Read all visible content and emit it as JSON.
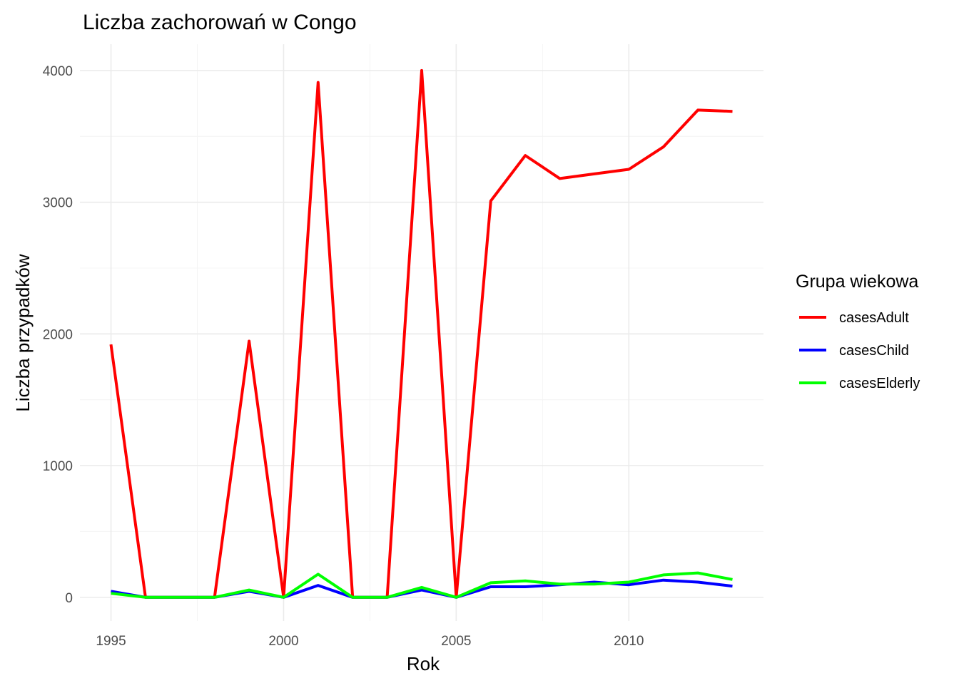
{
  "chart_data": {
    "type": "line",
    "title": "Liczba zachorowań w Congo",
    "xlabel": "Rok",
    "ylabel": "Liczba przypadków",
    "x": [
      1995,
      1996,
      1997,
      1998,
      1999,
      2000,
      2001,
      2002,
      2003,
      2004,
      2005,
      2006,
      2007,
      2008,
      2009,
      2010,
      2011,
      2012,
      2013
    ],
    "xlim": [
      1994.1,
      2013.9
    ],
    "ylim": [
      -180,
      4200
    ],
    "x_ticks": [
      "1995",
      "2000",
      "2005",
      "2010"
    ],
    "y_ticks": [
      "0",
      "1000",
      "2000",
      "3000",
      "4000"
    ],
    "grid": true,
    "legend": {
      "title": "Grupa wiekowa",
      "placement": "right"
    },
    "series": [
      {
        "name": "casesAdult",
        "color": "#ff0000",
        "values": [
          1920,
          0,
          0,
          0,
          1945,
          0,
          3910,
          0,
          0,
          4000,
          0,
          3010,
          3355,
          3180,
          3215,
          3250,
          3420,
          3700,
          3690
        ]
      },
      {
        "name": "casesChild",
        "color": "#0000ff",
        "values": [
          45,
          0,
          0,
          0,
          45,
          0,
          90,
          0,
          0,
          55,
          0,
          80,
          80,
          95,
          115,
          95,
          130,
          115,
          85
        ]
      },
      {
        "name": "casesElderly",
        "color": "#00ff00",
        "values": [
          30,
          0,
          0,
          0,
          55,
          0,
          175,
          0,
          0,
          75,
          0,
          110,
          125,
          100,
          100,
          115,
          170,
          185,
          135
        ]
      }
    ]
  }
}
